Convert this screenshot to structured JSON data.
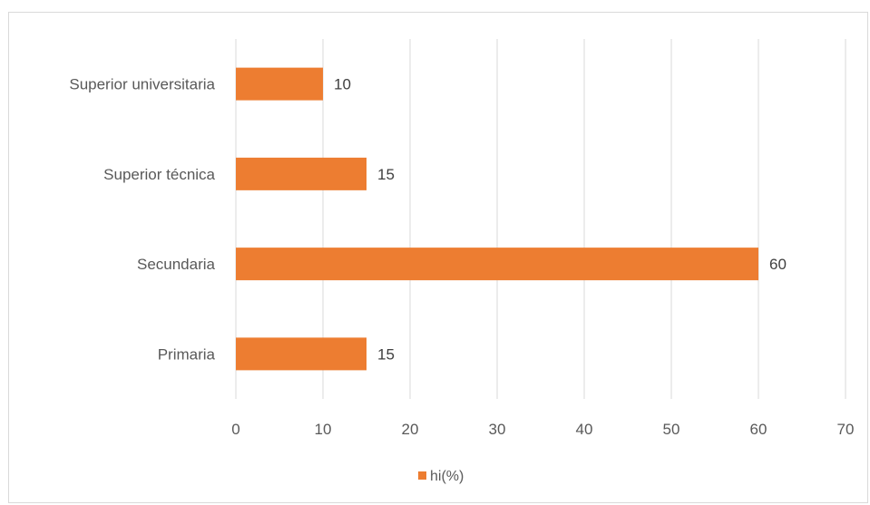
{
  "chart_data": {
    "type": "bar",
    "orientation": "horizontal",
    "categories": [
      "Superior universitaria",
      "Superior técnica",
      "Secundaria",
      "Primaria"
    ],
    "series": [
      {
        "name": "hi(%)",
        "values": [
          10,
          15,
          60,
          15
        ],
        "color": "#ED7D31"
      }
    ],
    "data_labels": [
      "10",
      "15",
      "60",
      "15"
    ],
    "xlim": [
      0,
      70
    ],
    "xticks": [
      0,
      10,
      20,
      30,
      40,
      50,
      60,
      70
    ],
    "xtick_labels": [
      "0",
      "10",
      "20",
      "30",
      "40",
      "50",
      "60",
      "70"
    ],
    "grid": true,
    "legend_position": "bottom",
    "colors": {
      "bar": "#ED7D31",
      "grid": "#d9d9d9",
      "text": "#595959",
      "data_label": "#404040"
    }
  }
}
